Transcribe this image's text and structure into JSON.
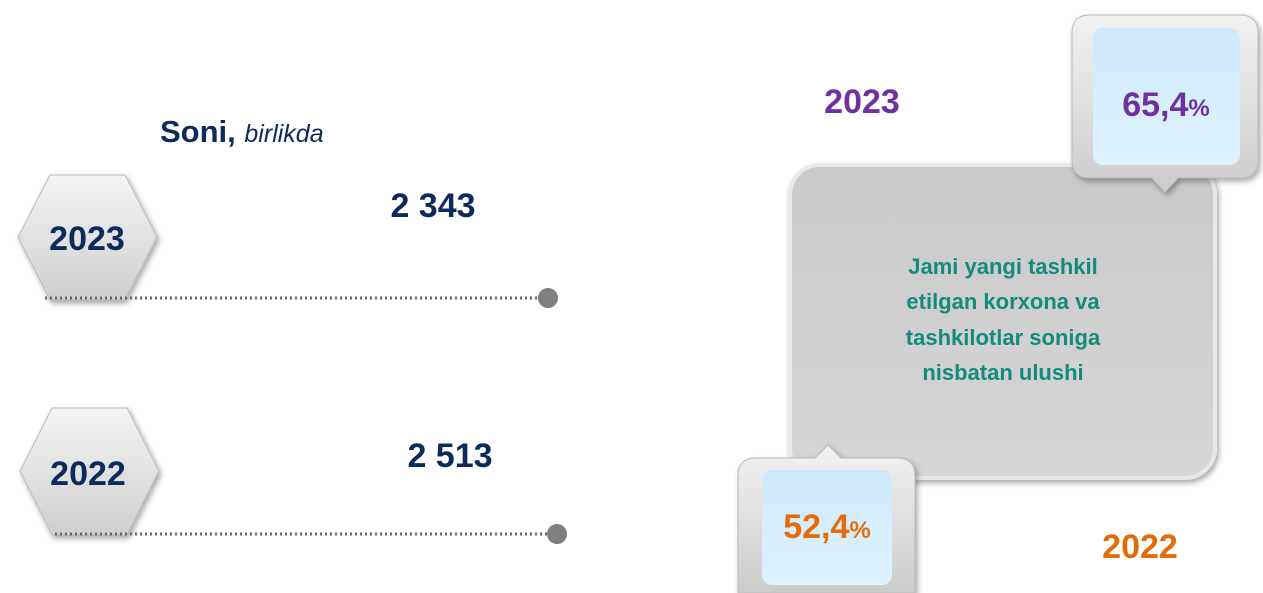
{
  "left": {
    "title": "Soni,",
    "unit": "birlikda",
    "rows": [
      {
        "year": "2023",
        "value": "2 343"
      },
      {
        "year": "2022",
        "value": "2 513"
      }
    ]
  },
  "right": {
    "caption": [
      "Jami yangi tashkil",
      "etilgan korxona va",
      "tashkilotlar soniga",
      "nisbatan ulushi"
    ],
    "items": [
      {
        "year": "2023",
        "share": "65,4",
        "unit": "%"
      },
      {
        "year": "2022",
        "share": "52,4",
        "unit": "%"
      }
    ]
  }
}
